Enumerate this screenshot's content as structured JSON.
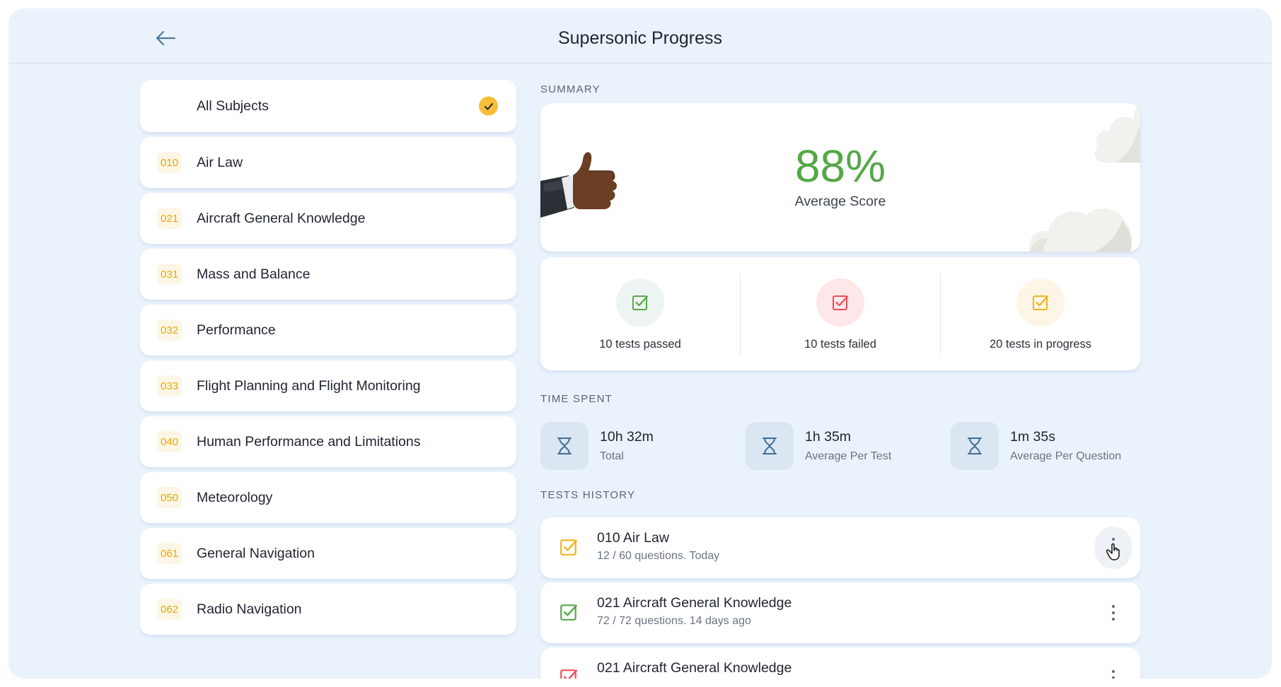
{
  "header": {
    "title": "Supersonic Progress",
    "back_icon": "arrow-left-icon"
  },
  "subjects": [
    {
      "code": "",
      "label": "All Subjects",
      "selected": true
    },
    {
      "code": "010",
      "label": "Air Law"
    },
    {
      "code": "021",
      "label": "Aircraft General Knowledge"
    },
    {
      "code": "031",
      "label": "Mass and Balance"
    },
    {
      "code": "032",
      "label": "Performance"
    },
    {
      "code": "033",
      "label": "Flight Planning and Flight Monitoring"
    },
    {
      "code": "040",
      "label": "Human Performance and Limitations"
    },
    {
      "code": "050",
      "label": "Meteorology"
    },
    {
      "code": "061",
      "label": "General Navigation"
    },
    {
      "code": "062",
      "label": "Radio Navigation"
    }
  ],
  "summary": {
    "section_title": "SUMMARY",
    "score_value": "88%",
    "score_label": "Average Score",
    "stats": [
      {
        "label": "10 tests passed",
        "color": "#55a847",
        "bg": "#eef4f1"
      },
      {
        "label": "10 tests failed",
        "color": "#ee4b5a",
        "bg": "#fde7e8"
      },
      {
        "label": "20 tests in progress",
        "color": "#f2b318",
        "bg": "#fdf6e6"
      }
    ]
  },
  "time_spent": {
    "section_title": "TIME SPENT",
    "items": [
      {
        "value": "10h 32m",
        "label": "Total"
      },
      {
        "value": "1h 35m",
        "label": "Average Per Test"
      },
      {
        "value": "1m 35s",
        "label": "Average Per Question"
      }
    ]
  },
  "history": {
    "section_title": "TESTS HISTORY",
    "items": [
      {
        "title": "010 Air Law",
        "subtitle": "12 / 60 questions. Today",
        "status_color": "#f2b318"
      },
      {
        "title": "021 Aircraft General Knowledge",
        "subtitle": "72 / 72 questions. 14 days ago",
        "status_color": "#55a847"
      },
      {
        "title": "021 Aircraft General Knowledge",
        "subtitle": "",
        "status_color": "#ee4b5a"
      }
    ]
  },
  "colors": {
    "accent_yellow": "#f7be38",
    "background": "#eaf2fc",
    "card": "#ffffff"
  }
}
